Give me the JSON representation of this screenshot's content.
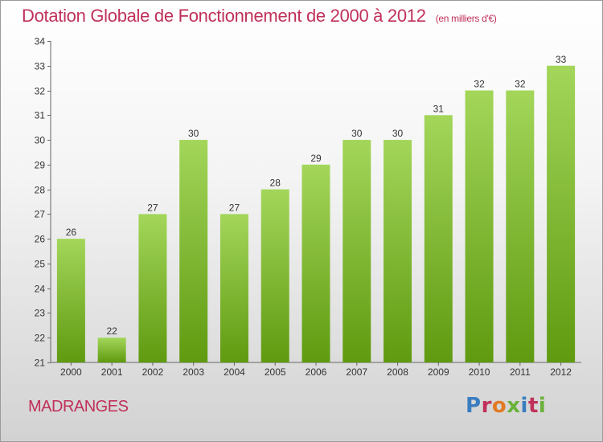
{
  "header": {
    "title": "Dotation Globale de Fonctionnement de 2000 à 2012",
    "unit": "(en milliers d'€)"
  },
  "footer": {
    "location": "MADRANGES",
    "logo": "Proxiti"
  },
  "colors": {
    "title": "#c0315a",
    "bar_top": "#a3d65a",
    "bar_bottom": "#5f9a10",
    "logo_blue": "#3a7dc0",
    "logo_orange": "#e27a23",
    "logo_green": "#6ab23a",
    "logo_red": "#c0315a"
  },
  "chart_data": {
    "type": "bar",
    "title": "Dotation Globale de Fonctionnement de 2000 à 2012",
    "subtitle": "(en milliers d'€)",
    "xlabel": "",
    "ylabel": "",
    "categories": [
      "2000",
      "2001",
      "2002",
      "2003",
      "2004",
      "2005",
      "2006",
      "2007",
      "2008",
      "2009",
      "2010",
      "2011",
      "2012"
    ],
    "values": [
      26,
      22,
      27,
      30,
      27,
      28,
      29,
      30,
      30,
      31,
      32,
      32,
      33
    ],
    "ylim": [
      21,
      34
    ],
    "yticks": [
      21,
      22,
      23,
      24,
      25,
      26,
      27,
      28,
      29,
      30,
      31,
      32,
      33,
      34
    ],
    "grid": false,
    "legend": "none",
    "data_labels": true
  }
}
